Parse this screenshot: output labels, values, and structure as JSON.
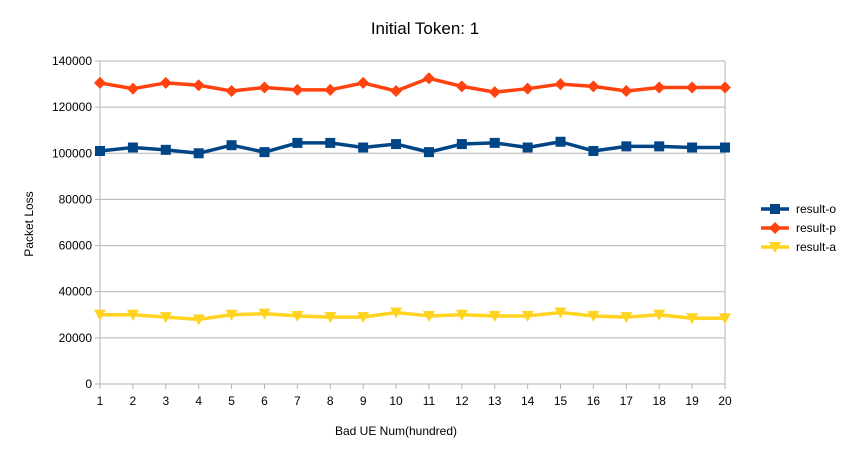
{
  "chart_data": {
    "type": "line",
    "title": "Initial Token: 1",
    "xlabel": "Bad UE Num(hundred)",
    "ylabel": "Packet Loss",
    "x": [
      1,
      2,
      3,
      4,
      5,
      6,
      7,
      8,
      9,
      10,
      11,
      12,
      13,
      14,
      15,
      16,
      17,
      18,
      19,
      20
    ],
    "ylim": [
      0,
      140000
    ],
    "yticks": [
      "0",
      "20000",
      "40000",
      "60000",
      "80000",
      "100000",
      "120000",
      "140000"
    ],
    "grid": true,
    "legend_position": "right",
    "series": [
      {
        "name": "result-o",
        "color": "#004586",
        "marker": "square",
        "values": [
          101000,
          102500,
          101500,
          100000,
          103500,
          100500,
          104500,
          104500,
          102500,
          104000,
          100500,
          104000,
          104500,
          102500,
          105000,
          101000,
          103000,
          103000,
          102500,
          102500
        ]
      },
      {
        "name": "result-p",
        "color": "#ff420e",
        "marker": "diamond",
        "values": [
          130500,
          128000,
          130500,
          129500,
          127000,
          128500,
          127500,
          127500,
          130500,
          127000,
          132500,
          129000,
          126500,
          128000,
          130000,
          129000,
          127000,
          128500,
          128500,
          128500
        ]
      },
      {
        "name": "result-a",
        "color": "#ffd320",
        "marker": "triangle-down",
        "values": [
          30000,
          30000,
          29000,
          28000,
          30000,
          30500,
          29500,
          29000,
          29000,
          31000,
          29500,
          30000,
          29500,
          29500,
          31000,
          29500,
          29000,
          30000,
          28500,
          28500
        ]
      }
    ]
  }
}
